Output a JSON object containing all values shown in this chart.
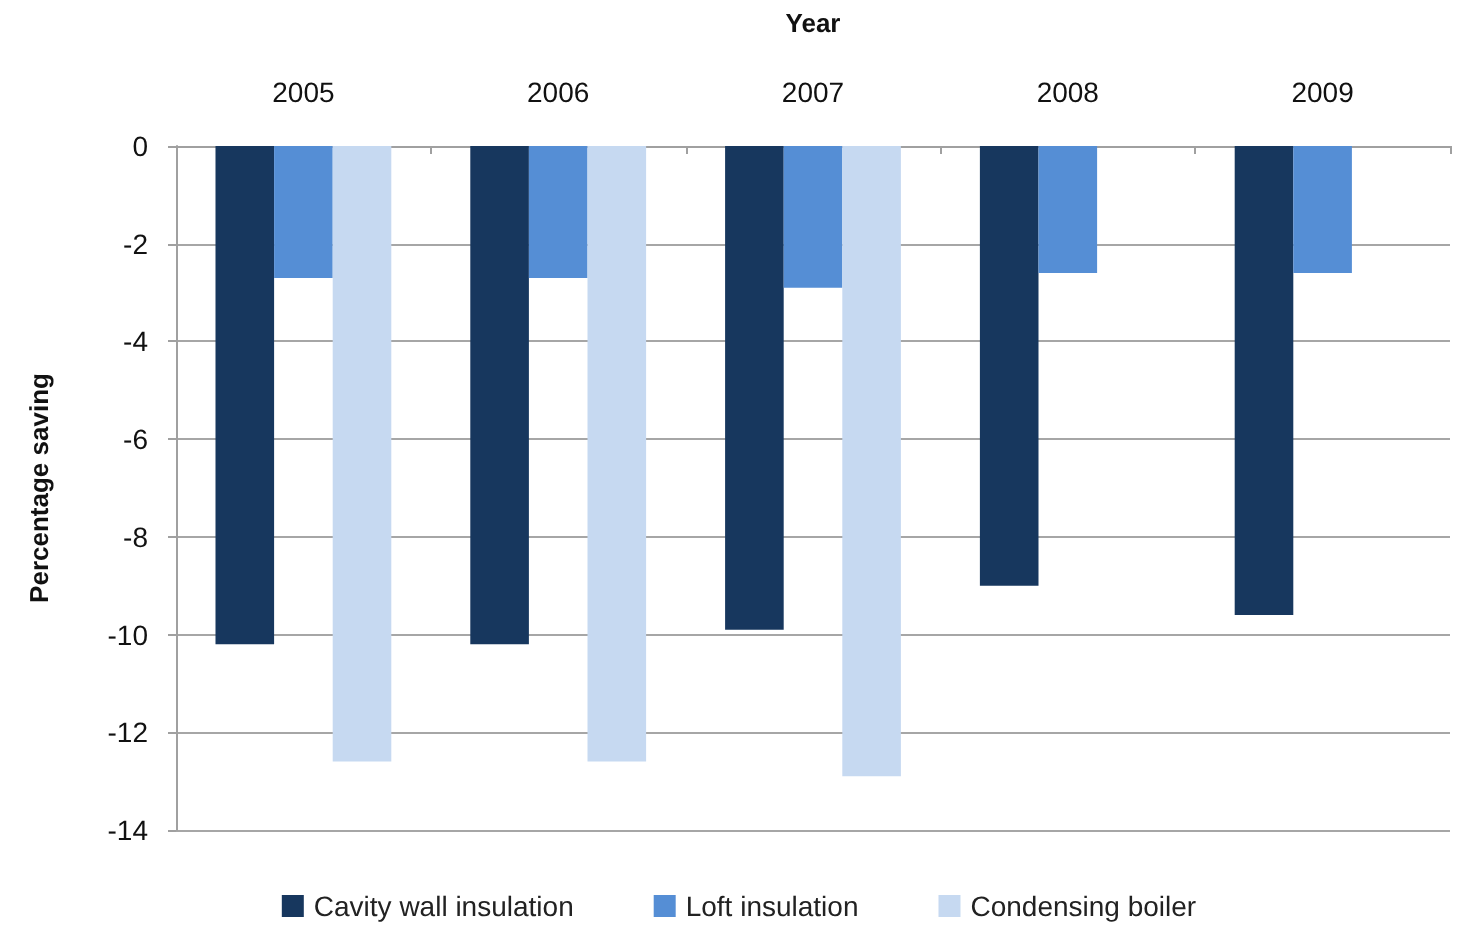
{
  "chart_data": {
    "type": "bar",
    "xlabel": "Year",
    "ylabel": "Percentage saving",
    "categories": [
      "2005",
      "2006",
      "2007",
      "2008",
      "2009"
    ],
    "series": [
      {
        "name": "Cavity wall insulation",
        "color": "#17375e",
        "values": [
          -10.2,
          -10.2,
          -9.9,
          -9.0,
          -9.6
        ]
      },
      {
        "name": "Loft insulation",
        "color": "#558ed5",
        "values": [
          -2.7,
          -2.7,
          -2.9,
          -2.6,
          -2.6
        ]
      },
      {
        "name": "Condensing boiler",
        "color": "#c6d9f1",
        "values": [
          -12.6,
          -12.6,
          -12.9,
          null,
          null
        ]
      }
    ],
    "ylim": [
      -14,
      0
    ],
    "yticks": [
      -14,
      -12,
      -10,
      -8,
      -6,
      -4,
      -2,
      0
    ],
    "grid": "y",
    "legend": "bottom"
  }
}
